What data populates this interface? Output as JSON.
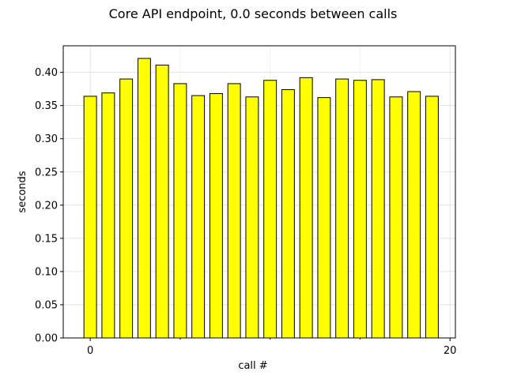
{
  "chart_data": {
    "type": "bar",
    "title": "Core API endpoint, 0.0 seconds between calls",
    "xlabel": "call #",
    "ylabel": "seconds",
    "x": [
      0,
      1,
      2,
      3,
      4,
      5,
      6,
      7,
      8,
      9,
      10,
      11,
      12,
      13,
      14,
      15,
      16,
      17,
      18,
      19
    ],
    "values": [
      0.364,
      0.369,
      0.39,
      0.421,
      0.411,
      0.383,
      0.365,
      0.368,
      0.383,
      0.363,
      0.388,
      0.374,
      0.392,
      0.362,
      0.39,
      0.388,
      0.389,
      0.363,
      0.371,
      0.364
    ],
    "ylim": [
      0,
      0.44
    ],
    "xlim": [
      -1.5,
      20.3
    ],
    "yticks": [
      "0.00",
      "0.05",
      "0.10",
      "0.15",
      "0.20",
      "0.25",
      "0.30",
      "0.35",
      "0.40"
    ],
    "xticks": [
      "0",
      "20"
    ],
    "grid": true,
    "colors": {
      "bar_fill": "#ffff00",
      "bar_edge": "#000000",
      "grid": "#dddddd"
    }
  }
}
